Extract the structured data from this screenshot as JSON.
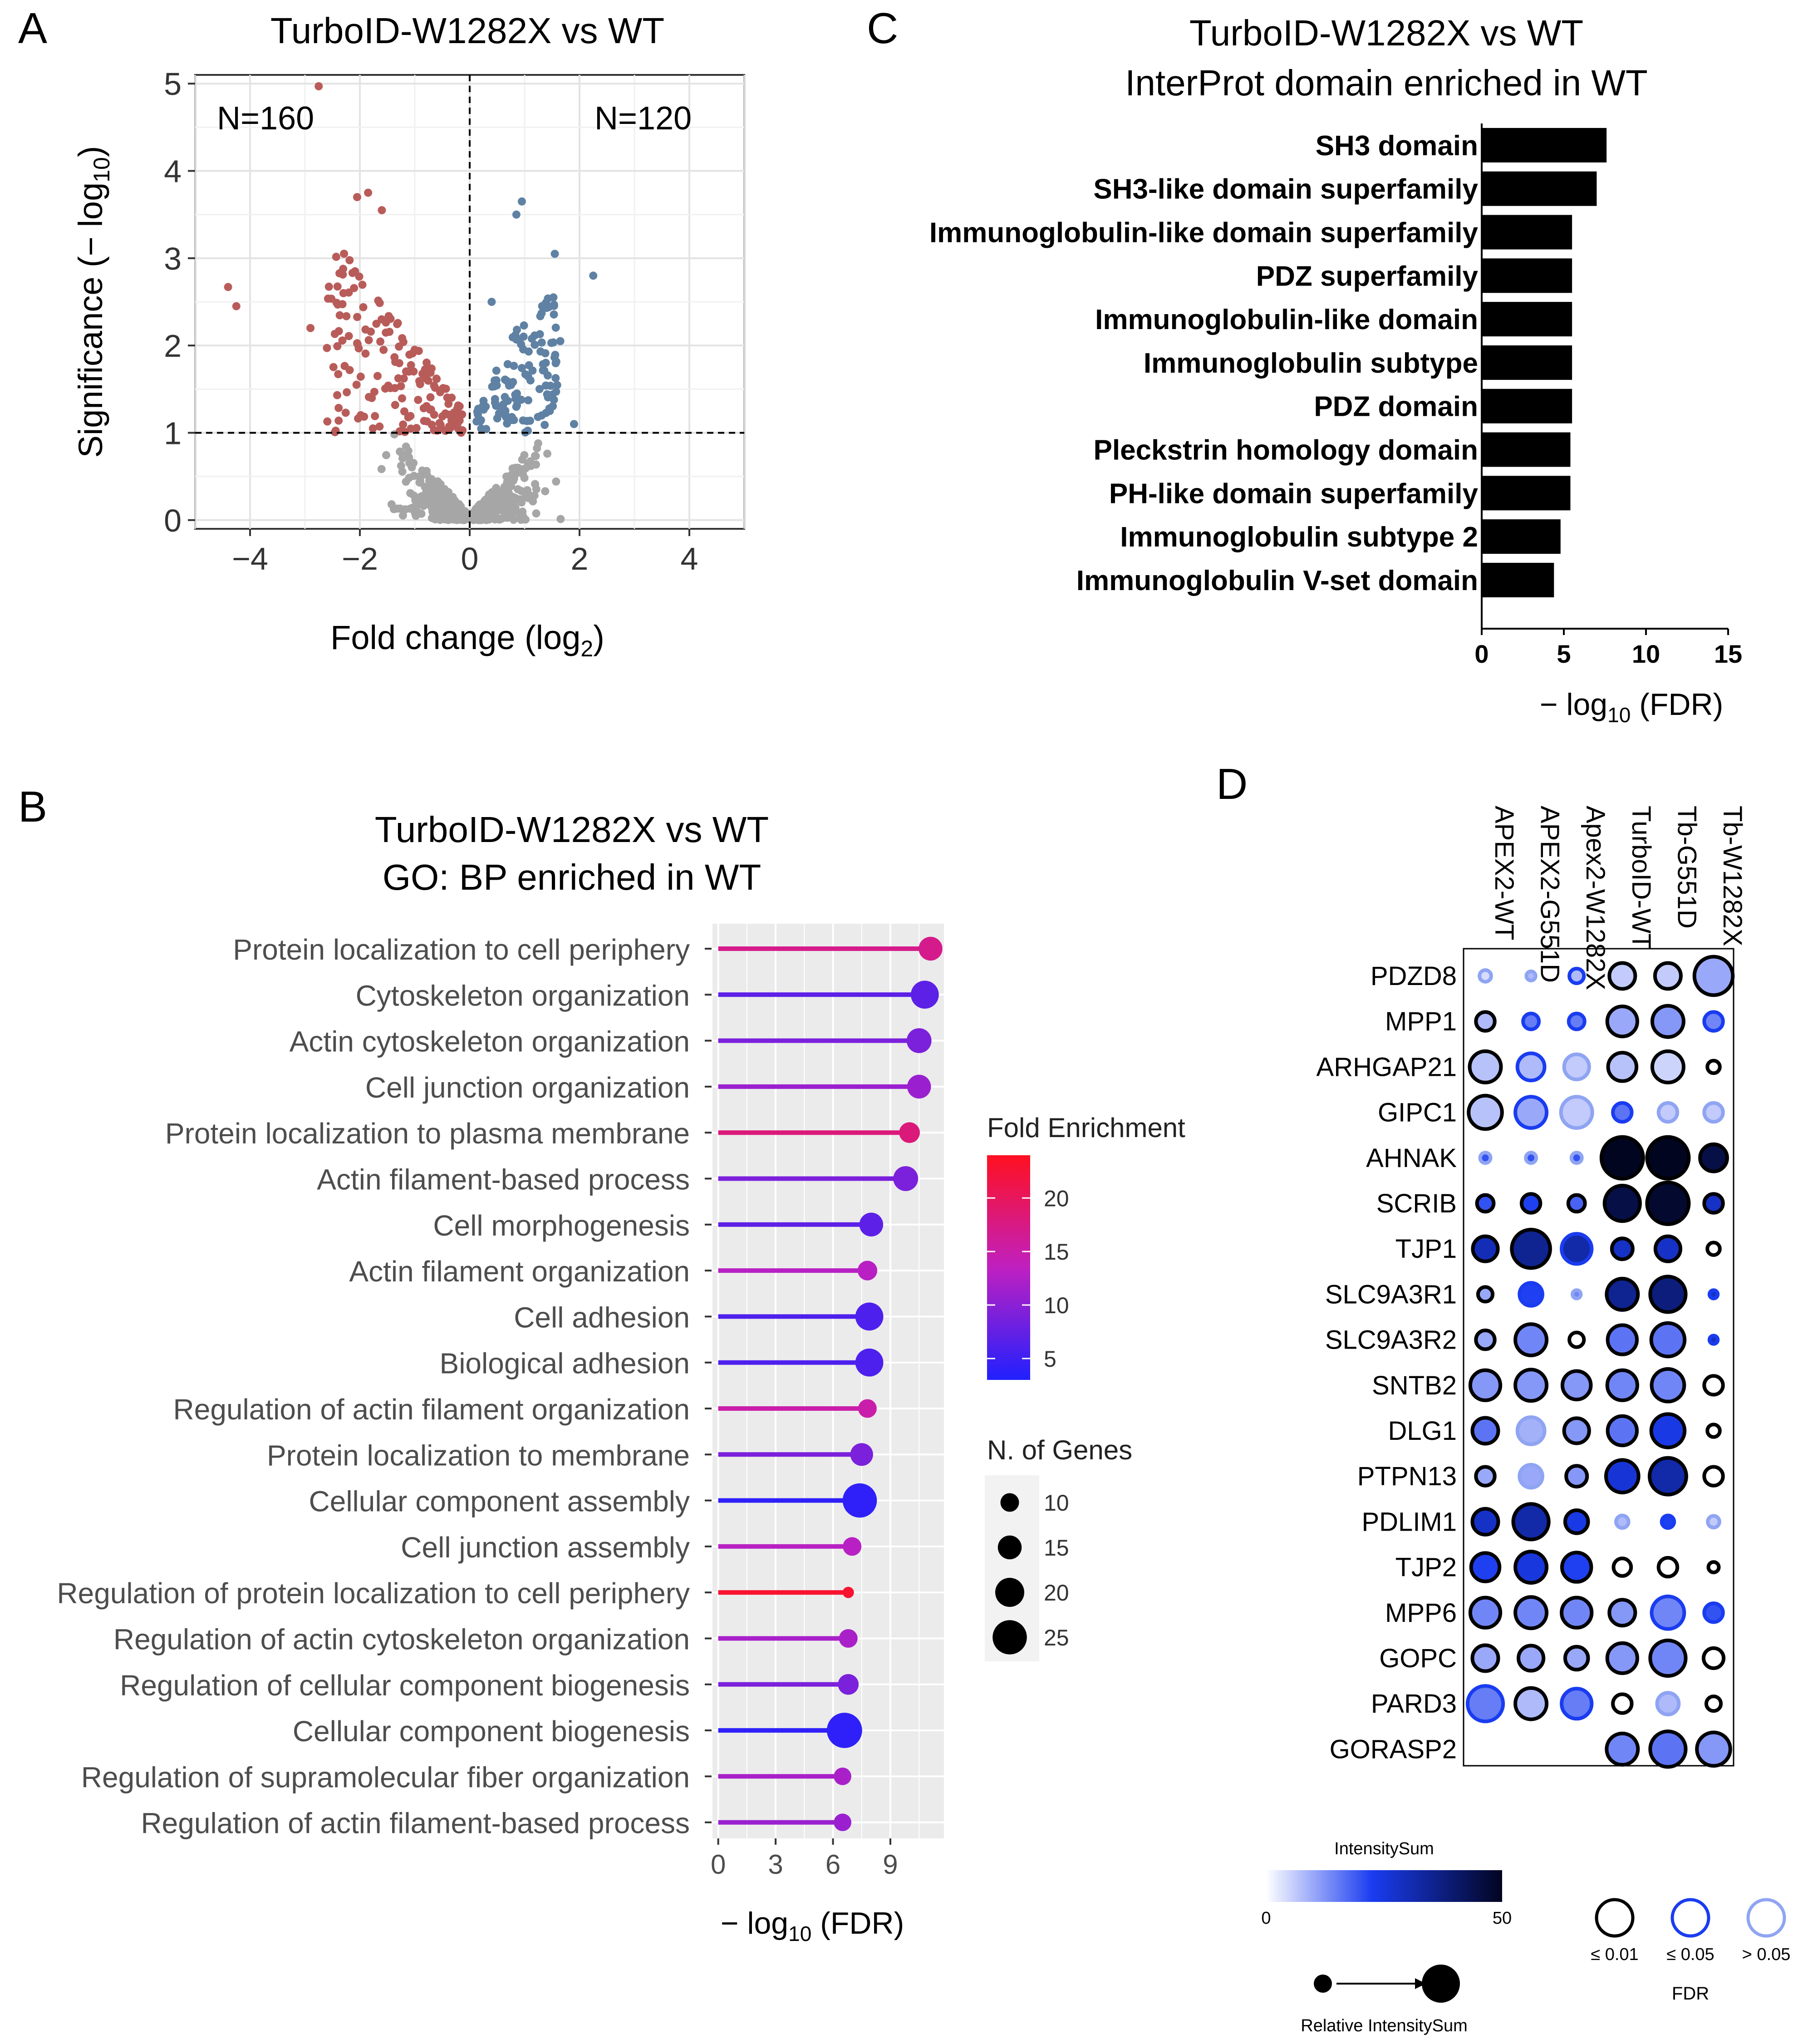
{
  "panel_letters": {
    "a": "A",
    "b": "B",
    "c": "C",
    "d": "D"
  },
  "chart_data": [
    {
      "id": "A",
      "type": "scatter",
      "title": "TurboID-W1282X vs WT",
      "xlabel_main": "Fold change (log",
      "xlabel_sub": "2",
      "xlabel_end": ")",
      "ylabel_main": "Significance (− log",
      "ylabel_sub": "10",
      "ylabel_end": ")",
      "xlim": [
        -5,
        5
      ],
      "ylim": [
        -0.1,
        5.1
      ],
      "xticks": [
        -4,
        -2,
        0,
        2,
        4
      ],
      "xtick_labels": [
        "−4",
        "−2",
        "0",
        "2",
        "4"
      ],
      "yticks": [
        0,
        1,
        2,
        3,
        4,
        5
      ],
      "ytick_labels": [
        "0",
        "1",
        "2",
        "3",
        "4",
        "5"
      ],
      "vline_x": 0,
      "hline_y": 1,
      "annotations": {
        "left": "N=160",
        "right": "N=120"
      },
      "colors": {
        "down": "#b85c5a",
        "up": "#5f81a3",
        "ns": "#a6a6a6"
      },
      "counts": {
        "down": 160,
        "up": 120,
        "ns": 520
      },
      "ranges": {
        "down_x": [
          -2.6,
          -0.1
        ],
        "down_y": [
          1.0,
          3.1
        ],
        "up_x": [
          0.1,
          1.6
        ],
        "up_y": [
          1.0,
          2.6
        ],
        "ns_x": [
          -1.8,
          1.8
        ],
        "ns_y": [
          0,
          1
        ]
      },
      "points_outlier_down": [
        [
          -4.4,
          2.67
        ],
        [
          -4.25,
          2.45
        ],
        [
          -2.75,
          4.97
        ],
        [
          -1.85,
          3.75
        ],
        [
          -2.05,
          3.7
        ],
        [
          -2.9,
          2.2
        ],
        [
          -2.3,
          2.6
        ],
        [
          -1.6,
          3.55
        ]
      ],
      "points_outlier_up": [
        [
          0.95,
          3.65
        ],
        [
          0.85,
          3.5
        ],
        [
          1.55,
          3.05
        ],
        [
          2.25,
          2.8
        ],
        [
          1.65,
          2.05
        ],
        [
          1.9,
          1.1
        ],
        [
          0.4,
          2.5
        ]
      ]
    },
    {
      "id": "B",
      "type": "lollipop",
      "title": "TurboID-W1282X vs WT",
      "subtitle": "GO: BP enriched in WT",
      "xlabel_main": "− log",
      "xlabel_sub": "10",
      "xlabel_end": " (FDR)",
      "xlim": [
        -0.3,
        11.8
      ],
      "xticks": [
        0,
        3,
        6,
        9
      ],
      "xtick_labels": [
        "0",
        "3",
        "6",
        "9"
      ],
      "categories": [
        "Protein localization to cell periphery",
        "Cytoskeleton organization",
        "Actin cytoskeleton organization",
        "Cell junction organization",
        "Protein localization to plasma membrane",
        "Actin filament-based process",
        "Cell morphogenesis",
        "Actin filament organization",
        "Cell adhesion",
        "Biological adhesion",
        "Regulation of actin filament organization",
        "Protein localization to membrane",
        "Cellular component assembly",
        "Cell junction assembly",
        "Regulation of protein localization to cell periphery",
        "Regulation of actin cytoskeleton organization",
        "Regulation of cellular component biogenesis",
        "Cellular component biogenesis",
        "Regulation of supramolecular fiber organization",
        "Regulation of actin filament-based process"
      ],
      "values": [
        11.1,
        10.8,
        10.5,
        10.5,
        10.0,
        9.8,
        8.0,
        7.8,
        7.9,
        7.9,
        7.8,
        7.5,
        7.4,
        7.0,
        6.8,
        6.8,
        6.8,
        6.6,
        6.5,
        6.5
      ],
      "fold_enrichment": [
        17,
        7,
        9,
        11,
        18,
        9,
        7,
        13,
        6,
        6,
        15,
        9,
        4,
        13,
        23,
        12,
        9,
        4,
        12,
        11
      ],
      "n_genes": [
        15,
        19,
        16,
        15,
        12,
        16,
        15,
        11,
        19,
        19,
        10,
        14,
        25,
        10,
        3,
        10,
        12,
        26,
        9,
        9
      ],
      "color_legend_title": "Fold Enrichment",
      "color_range": [
        3,
        24
      ],
      "color_ticks": [
        5,
        10,
        15,
        20
      ],
      "color_tick_labels": [
        "5",
        "10",
        "15",
        "20"
      ],
      "size_legend_title": "N. of Genes",
      "size_legend_values": [
        10,
        15,
        20,
        25
      ],
      "size_legend_labels": [
        "10",
        "15",
        "20",
        "25"
      ]
    },
    {
      "id": "C",
      "type": "bar",
      "orientation": "horizontal",
      "title": "TurboID-W1282X vs WT",
      "subtitle": "InterProt domain enriched in WT",
      "xlabel_main": "− log",
      "xlabel_sub": "10",
      "xlabel_end": " (FDR)",
      "xlim": [
        0,
        15
      ],
      "xticks": [
        0,
        5,
        10,
        15
      ],
      "xtick_labels": [
        "0",
        "5",
        "10",
        "15"
      ],
      "categories": [
        "SH3 domain",
        "SH3-like domain superfamily",
        "Immunoglobulin-like domain superfamily",
        "PDZ superfamily",
        "Immunoglobulin-like domain",
        "Immunoglobulin subtype",
        "PDZ domain",
        "Pleckstrin homology domain",
        "PH-like domain superfamily",
        "Immunoglobulin subtype 2",
        "Immunoglobulin V-set domain"
      ],
      "values": [
        7.6,
        7.0,
        5.5,
        5.5,
        5.5,
        5.5,
        5.5,
        5.4,
        5.4,
        4.8,
        4.4
      ],
      "bar_color": "#000000"
    },
    {
      "id": "D",
      "type": "dotplot",
      "columns": [
        "APEX2-WT",
        "APEX2-G551D",
        "Apex2-W1282X",
        "TurboID-WT",
        "Tb-G551D",
        "Tb-W1282X"
      ],
      "rows": [
        "PDZD8",
        "MPP1",
        "ARHGAP21",
        "GIPC1",
        "AHNAK",
        "SCRIB",
        "TJP1",
        "SLC9A3R1",
        "SLC9A3R2",
        "SNTB2",
        "DLG1",
        "PTPN13",
        "PDLIM1",
        "TJP2",
        "MPP6",
        "GOPC",
        "PARD3",
        "GORASP2"
      ],
      "intensity": [
        [
          4,
          8,
          8,
          6,
          6,
          10
        ],
        [
          8,
          15,
          15,
          10,
          12,
          14
        ],
        [
          7,
          8,
          6,
          7,
          5,
          0
        ],
        [
          7,
          10,
          6,
          16,
          6,
          6
        ],
        [
          20,
          20,
          20,
          50,
          50,
          45
        ],
        [
          20,
          22,
          18,
          45,
          48,
          28
        ],
        [
          30,
          35,
          32,
          28,
          28,
          0
        ],
        [
          10,
          22,
          14,
          35,
          38,
          28
        ],
        [
          10,
          14,
          0,
          16,
          16,
          28
        ],
        [
          12,
          12,
          12,
          14,
          14,
          0
        ],
        [
          16,
          9,
          12,
          16,
          24,
          0
        ],
        [
          10,
          10,
          12,
          26,
          32,
          0
        ],
        [
          28,
          32,
          24,
          8,
          22,
          6
        ],
        [
          22,
          25,
          22,
          0,
          0,
          0
        ],
        [
          14,
          14,
          14,
          12,
          14,
          20
        ],
        [
          10,
          10,
          10,
          12,
          14,
          0
        ],
        [
          15,
          8,
          15,
          0,
          8,
          0
        ],
        [
          null,
          null,
          null,
          14,
          16,
          12
        ]
      ],
      "rel_size": [
        [
          0.28,
          0.22,
          0.35,
          0.62,
          0.62,
          0.92
        ],
        [
          0.45,
          0.38,
          0.38,
          0.72,
          0.75,
          0.45
        ],
        [
          0.75,
          0.65,
          0.6,
          0.68,
          0.75,
          0.3
        ],
        [
          0.8,
          0.75,
          0.75,
          0.45,
          0.45,
          0.45
        ],
        [
          0.25,
          0.25,
          0.25,
          1.0,
          1.0,
          0.65
        ],
        [
          0.4,
          0.45,
          0.4,
          0.85,
          1.0,
          0.45
        ],
        [
          0.6,
          0.92,
          0.72,
          0.5,
          0.6,
          0.3
        ],
        [
          0.35,
          0.55,
          0.2,
          0.75,
          0.85,
          0.2
        ],
        [
          0.45,
          0.75,
          0.35,
          0.7,
          0.8,
          0.2
        ],
        [
          0.72,
          0.75,
          0.68,
          0.72,
          0.78,
          0.45
        ],
        [
          0.62,
          0.65,
          0.6,
          0.7,
          0.8,
          0.3
        ],
        [
          0.45,
          0.55,
          0.5,
          0.78,
          0.88,
          0.45
        ],
        [
          0.62,
          0.85,
          0.55,
          0.3,
          0.3,
          0.28
        ],
        [
          0.68,
          0.75,
          0.7,
          0.42,
          0.45,
          0.25
        ],
        [
          0.72,
          0.75,
          0.72,
          0.62,
          0.78,
          0.45
        ],
        [
          0.62,
          0.6,
          0.55,
          0.72,
          0.85,
          0.48
        ],
        [
          0.85,
          0.75,
          0.72,
          0.45,
          0.52,
          0.35
        ],
        [
          null,
          null,
          null,
          0.75,
          0.85,
          0.8
        ]
      ],
      "fdr_class": [
        [
          "gt05",
          "gt05",
          "le05",
          "le01",
          "le01",
          "le01"
        ],
        [
          "le01",
          "le05",
          "le05",
          "le01",
          "le01",
          "le05"
        ],
        [
          "le01",
          "le05",
          "gt05",
          "le01",
          "le01",
          "le01"
        ],
        [
          "le01",
          "le05",
          "gt05",
          "le05",
          "gt05",
          "gt05"
        ],
        [
          "gt05",
          "gt05",
          "gt05",
          "le01",
          "le01",
          "le01"
        ],
        [
          "le01",
          "le01",
          "le01",
          "le01",
          "le01",
          "le01"
        ],
        [
          "le01",
          "le01",
          "le05",
          "le01",
          "le01",
          "le01"
        ],
        [
          "le01",
          "le05",
          "gt05",
          "le01",
          "le01",
          "le05"
        ],
        [
          "le01",
          "le01",
          "le01",
          "le01",
          "le01",
          "le05"
        ],
        [
          "le01",
          "le01",
          "le01",
          "le01",
          "le01",
          "le01"
        ],
        [
          "le01",
          "gt05",
          "le01",
          "le01",
          "le01",
          "le01"
        ],
        [
          "le01",
          "gt05",
          "le01",
          "le01",
          "le01",
          "le01"
        ],
        [
          "le01",
          "le01",
          "le01",
          "gt05",
          "le05",
          "gt05"
        ],
        [
          "le01",
          "le01",
          "le01",
          "le01",
          "le01",
          "le01"
        ],
        [
          "le01",
          "le01",
          "le01",
          "le01",
          "le05",
          "le05"
        ],
        [
          "le01",
          "le01",
          "le01",
          "le01",
          "le01",
          "le01"
        ],
        [
          "le05",
          "le01",
          "le05",
          "le01",
          "gt05",
          "le01"
        ],
        [
          null,
          null,
          null,
          "le01",
          "le01",
          "le01"
        ]
      ],
      "legend_intensity_title": "IntensitySum",
      "legend_intensity_range": [
        0,
        50
      ],
      "legend_intensity_min_label": "0",
      "legend_intensity_max_label": "50",
      "legend_relative_label": "Relative IntensitySum",
      "legend_fdr_title": "FDR",
      "legend_fdr_labels": [
        "≤ 0.01",
        "≤ 0.05",
        "> 0.05"
      ],
      "fdr_colors": {
        "le01": "#000000",
        "le05": "#1a3cf0",
        "gt05": "#8fa4f2"
      }
    }
  ]
}
